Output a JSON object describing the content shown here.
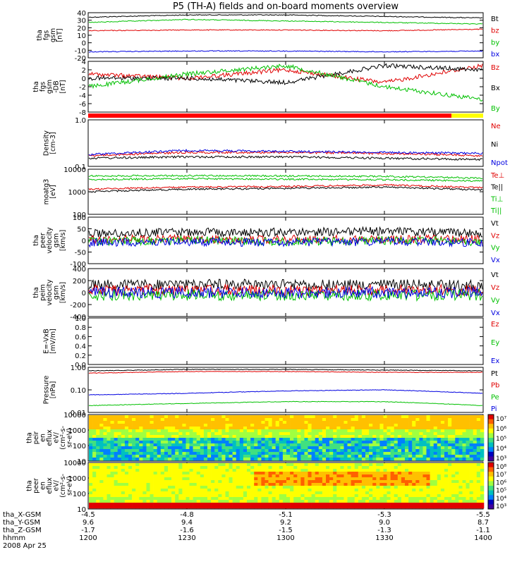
{
  "title": "P5 (TH-A) fields and on-board moments overview",
  "panels": [
    {
      "id": "fgs",
      "ylabel": [
        "tha",
        "fgs",
        "gsm",
        "[nT]"
      ],
      "ticks": [
        "40",
        "30",
        "20",
        "10",
        "0",
        "-10",
        "-20"
      ],
      "legend": [
        {
          "text": "Bt",
          "color": "#000000"
        },
        {
          "text": "bz",
          "color": "#e00000"
        },
        {
          "text": "by",
          "color": "#00c000"
        },
        {
          "text": "bx",
          "color": "#0000e0"
        }
      ]
    },
    {
      "id": "fgs_db",
      "ylabel": [
        "tha",
        "fgs",
        "gsm",
        "-DB",
        "[nT]"
      ],
      "ticks": [
        "4",
        "2",
        "0",
        "-2",
        "-4",
        "-6",
        "-8"
      ],
      "legend": [
        {
          "text": "Bz",
          "color": "#e00000"
        },
        {
          "text": "Bx",
          "color": "#000000"
        },
        {
          "text": "By",
          "color": "#00c000"
        }
      ]
    },
    {
      "id": "density",
      "ylabel": [
        "Density",
        "[cm-3]"
      ],
      "ticks": [
        "1.0",
        "0.1"
      ],
      "legend": [
        {
          "text": "Ne",
          "color": "#e00000"
        },
        {
          "text": "Ni",
          "color": "#000000"
        },
        {
          "text": "Npot",
          "color": "#0000e0"
        }
      ]
    },
    {
      "id": "temp",
      "ylabel": [
        "moatg3",
        "[eV]"
      ],
      "ticks": [
        "10000",
        "1000",
        "100"
      ],
      "legend": [
        {
          "text": "Te⊥",
          "color": "#e00000"
        },
        {
          "text": "Te||",
          "color": "#000000"
        },
        {
          "text": "Ti⊥",
          "color": "#00c000"
        },
        {
          "text": "Ti||",
          "color": "#00c000"
        }
      ]
    },
    {
      "id": "peer_v",
      "ylabel": [
        "tha",
        "peer",
        "velocity",
        "gsm",
        "[km/s]"
      ],
      "ticks": [
        "100",
        "50",
        "0",
        "-50",
        "-100"
      ],
      "legend": [
        {
          "text": "Vt",
          "color": "#000000"
        },
        {
          "text": "Vz",
          "color": "#e00000"
        },
        {
          "text": "Vy",
          "color": "#00c000"
        },
        {
          "text": "Vx",
          "color": "#0000e0"
        }
      ]
    },
    {
      "id": "peim_v",
      "ylabel": [
        "tha",
        "peim",
        "velocity",
        "gsm",
        "[km/s]"
      ],
      "ticks": [
        "400",
        "200",
        "0",
        "-200",
        "-400"
      ],
      "legend": [
        {
          "text": "Vt",
          "color": "#000000"
        },
        {
          "text": "Vz",
          "color": "#e00000"
        },
        {
          "text": "Vy",
          "color": "#00c000"
        },
        {
          "text": "Vx",
          "color": "#0000e0"
        }
      ]
    },
    {
      "id": "efield",
      "ylabel": [
        "E=-VxB",
        "[mV/m]"
      ],
      "ticks": [
        "1.0",
        "0.8",
        "0.6",
        "0.4",
        "0.2",
        "0.0"
      ],
      "legend": [
        {
          "text": "Ez",
          "color": "#e00000"
        },
        {
          "text": "Ey",
          "color": "#00c000"
        },
        {
          "text": "Ex",
          "color": "#0000e0"
        }
      ]
    },
    {
      "id": "pressure",
      "ylabel": [
        "Pressure",
        "[nPa]"
      ],
      "ticks": [
        "1.00",
        "0.10",
        "0.01"
      ],
      "legend": [
        {
          "text": "Pt",
          "color": "#000000"
        },
        {
          "text": "Pb",
          "color": "#e00000"
        },
        {
          "text": "Pe",
          "color": "#00c000"
        },
        {
          "text": "Pi",
          "color": "#0000e0"
        }
      ]
    },
    {
      "id": "peir_eflux",
      "ylabel": [
        "tha",
        "peir",
        "en",
        "eflux",
        "eV/",
        "(cm²-s-",
        "sr-eV)"
      ],
      "ticks": [
        "10000",
        "1000",
        "100",
        "10"
      ],
      "cbar": [
        "10⁷",
        "10⁶",
        "10⁵",
        "10⁴",
        "10³"
      ]
    },
    {
      "id": "peer_eflux",
      "ylabel": [
        "tha",
        "peer",
        "en",
        "eflux",
        "eV/",
        "(cm²-s-",
        "sr-eV)"
      ],
      "ticks": [
        "10000",
        "1000",
        "100",
        "10"
      ],
      "cbar": [
        "10⁸",
        "10⁷",
        "10⁶",
        "10⁵",
        "10⁴",
        "10³"
      ]
    }
  ],
  "xaxis": {
    "rows": [
      {
        "label": "tha_X-GSM",
        "values": [
          "-4.5",
          "-4.8",
          "-5.1",
          "-5.3",
          "-5.5"
        ]
      },
      {
        "label": "tha_Y-GSM",
        "values": [
          "9.6",
          "9.4",
          "9.2",
          "9.0",
          "8.7"
        ]
      },
      {
        "label": "tha_Z-GSM",
        "values": [
          "-1.7",
          "-1.6",
          "-1.5",
          "-1.3",
          "-1.1"
        ]
      },
      {
        "label": "hhmm",
        "values": [
          "1200",
          "1230",
          "1300",
          "1330",
          "1400"
        ]
      }
    ],
    "date": "2008 Apr 25"
  },
  "chart_data": {
    "type": "line",
    "title": "P5 (TH-A) fields and on-board moments overview",
    "time_range": [
      "1200",
      "1400"
    ],
    "time_ticks": [
      "1200",
      "1230",
      "1300",
      "1330",
      "1400"
    ],
    "panels": [
      {
        "name": "tha fgs gsm [nT]",
        "ylim": [
          -20,
          40
        ],
        "series": [
          {
            "name": "Bt",
            "x": [
              "1200",
              "1230",
              "1300",
              "1330",
              "1400"
            ],
            "values": [
              34,
              37,
              37,
              35,
              33
            ]
          },
          {
            "name": "bz",
            "x": [
              "1200",
              "1230",
              "1300",
              "1330",
              "1400"
            ],
            "values": [
              16,
              17,
              17,
              16,
              18
            ]
          },
          {
            "name": "by",
            "x": [
              "1200",
              "1230",
              "1300",
              "1330",
              "1400"
            ],
            "values": [
              27,
              31,
              29,
              27,
              25
            ]
          },
          {
            "name": "bx",
            "x": [
              "1200",
              "1230",
              "1300",
              "1330",
              "1400"
            ],
            "values": [
              -12,
              -11,
              -11,
              -12,
              -11
            ]
          }
        ]
      },
      {
        "name": "tha fgs gsm -DB [nT]",
        "ylim": [
          -8,
          4
        ],
        "series": [
          {
            "name": "Bz",
            "x": [
              "1200",
              "1230",
              "1300",
              "1330",
              "1400"
            ],
            "values": [
              1,
              0,
              2,
              -1,
              3
            ]
          },
          {
            "name": "Bx",
            "x": [
              "1200",
              "1230",
              "1300",
              "1330",
              "1400"
            ],
            "values": [
              0,
              0,
              -1,
              3,
              2
            ]
          },
          {
            "name": "By",
            "x": [
              "1200",
              "1230",
              "1300",
              "1330",
              "1400"
            ],
            "values": [
              -2,
              1,
              3,
              -2,
              -5
            ]
          }
        ]
      },
      {
        "name": "Density [cm-3]",
        "ylim": [
          0.1,
          1.0
        ],
        "scale": "log",
        "series": [
          {
            "name": "Ne",
            "x": [
              "1200",
              "1230",
              "1300",
              "1330",
              "1400"
            ],
            "values": [
              0.17,
              0.2,
              0.2,
              0.19,
              0.17
            ]
          },
          {
            "name": "Ni",
            "x": [
              "1200",
              "1230",
              "1300",
              "1330",
              "1400"
            ],
            "values": [
              0.15,
              0.16,
              0.16,
              0.15,
              0.14
            ]
          },
          {
            "name": "Npot",
            "x": [
              "1200",
              "1230",
              "1300",
              "1330",
              "1400"
            ],
            "values": [
              0.18,
              0.22,
              0.21,
              0.2,
              0.19
            ]
          }
        ]
      },
      {
        "name": "moatg3 [eV]",
        "ylim": [
          100,
          10000
        ],
        "scale": "log",
        "series": [
          {
            "name": "Te⊥",
            "x": [
              "1200",
              "1230",
              "1300",
              "1330",
              "1400"
            ],
            "values": [
              1300,
              1600,
              1700,
              2000,
              1500
            ]
          },
          {
            "name": "Te||",
            "x": [
              "1200",
              "1230",
              "1300",
              "1330",
              "1400"
            ],
            "values": [
              1000,
              1300,
              1400,
              1600,
              1200
            ]
          },
          {
            "name": "Ti⊥",
            "x": [
              "1200",
              "1230",
              "1300",
              "1330",
              "1400"
            ],
            "values": [
              5000,
              5200,
              5000,
              4800,
              4000
            ]
          },
          {
            "name": "Ti||",
            "x": [
              "1200",
              "1230",
              "1300",
              "1330",
              "1400"
            ],
            "values": [
              3500,
              3800,
              3600,
              3400,
              3000
            ]
          }
        ]
      },
      {
        "name": "tha peer velocity gsm [km/s]",
        "ylim": [
          -100,
          100
        ],
        "series": [
          {
            "name": "Vt",
            "x": [
              "1200",
              "1230",
              "1300",
              "1330",
              "1400"
            ],
            "values": [
              30,
              35,
              35,
              40,
              30
            ]
          },
          {
            "name": "Vz",
            "x": [
              "1200",
              "1230",
              "1300",
              "1330",
              "1400"
            ],
            "values": [
              5,
              5,
              5,
              5,
              5
            ]
          },
          {
            "name": "Vy",
            "x": [
              "1200",
              "1230",
              "1300",
              "1330",
              "1400"
            ],
            "values": [
              -5,
              0,
              -5,
              0,
              -5
            ]
          },
          {
            "name": "Vx",
            "x": [
              "1200",
              "1230",
              "1300",
              "1330",
              "1400"
            ],
            "values": [
              -10,
              -5,
              -10,
              -5,
              -10
            ]
          }
        ]
      },
      {
        "name": "tha peim velocity gsm [km/s]",
        "ylim": [
          -400,
          400
        ],
        "series": [
          {
            "name": "Vt",
            "x": [
              "1200",
              "1230",
              "1300",
              "1330",
              "1400"
            ],
            "values": [
              120,
              130,
              130,
              130,
              120
            ]
          },
          {
            "name": "Vz",
            "x": [
              "1200",
              "1230",
              "1300",
              "1330",
              "1400"
            ],
            "values": [
              40,
              40,
              40,
              40,
              40
            ]
          },
          {
            "name": "Vy",
            "x": [
              "1200",
              "1230",
              "1300",
              "1330",
              "1400"
            ],
            "values": [
              -40,
              -40,
              -40,
              -40,
              -40
            ]
          },
          {
            "name": "Vx",
            "x": [
              "1200",
              "1230",
              "1300",
              "1330",
              "1400"
            ],
            "values": [
              0,
              0,
              0,
              0,
              0
            ]
          }
        ]
      },
      {
        "name": "E=-VxB [mV/m]",
        "ylim": [
          0,
          1
        ],
        "series": []
      },
      {
        "name": "Pressure [nPa]",
        "ylim": [
          0.01,
          1.0
        ],
        "scale": "log",
        "series": [
          {
            "name": "Pt",
            "x": [
              "1200",
              "1230",
              "1300",
              "1330",
              "1400"
            ],
            "values": [
              0.7,
              0.8,
              0.8,
              0.75,
              0.7
            ]
          },
          {
            "name": "Pb",
            "x": [
              "1200",
              "1230",
              "1300",
              "1330",
              "1400"
            ],
            "values": [
              0.55,
              0.65,
              0.65,
              0.6,
              0.6
            ]
          },
          {
            "name": "Pe",
            "x": [
              "1200",
              "1230",
              "1300",
              "1330",
              "1400"
            ],
            "values": [
              0.02,
              0.025,
              0.03,
              0.03,
              0.02
            ]
          },
          {
            "name": "Pi",
            "x": [
              "1200",
              "1230",
              "1300",
              "1330",
              "1400"
            ],
            "values": [
              0.06,
              0.07,
              0.09,
              0.1,
              0.07
            ]
          }
        ]
      },
      {
        "name": "tha peir en eflux",
        "type": "heatmap",
        "ylim": [
          10,
          10000
        ],
        "colorbar": [
          "10³",
          "10⁷"
        ]
      },
      {
        "name": "tha peer en eflux",
        "type": "heatmap",
        "ylim": [
          10,
          10000
        ],
        "colorbar": [
          "10³",
          "10⁸"
        ]
      }
    ]
  }
}
